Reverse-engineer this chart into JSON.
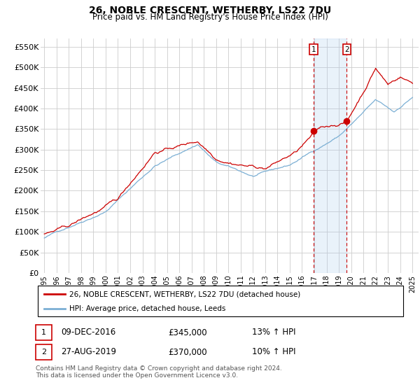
{
  "title": "26, NOBLE CRESCENT, WETHERBY, LS22 7DU",
  "subtitle": "Price paid vs. HM Land Registry's House Price Index (HPI)",
  "ylim": [
    0,
    570000
  ],
  "yticks": [
    0,
    50000,
    100000,
    150000,
    200000,
    250000,
    300000,
    350000,
    400000,
    450000,
    500000,
    550000
  ],
  "ytick_labels": [
    "£0",
    "£50K",
    "£100K",
    "£150K",
    "£200K",
    "£250K",
    "£300K",
    "£350K",
    "£400K",
    "£450K",
    "£500K",
    "£550K"
  ],
  "hpi_color": "#7bafd4",
  "price_color": "#cc0000",
  "grid_color": "#cccccc",
  "shade_color": "#ddeeff",
  "background_color": "#ffffff",
  "sale1_year": 2016.94,
  "sale1_price": 345000,
  "sale2_year": 2019.65,
  "sale2_price": 370000,
  "legend_line1": "26, NOBLE CRESCENT, WETHERBY, LS22 7DU (detached house)",
  "legend_line2": "HPI: Average price, detached house, Leeds",
  "table_row1": [
    "1",
    "09-DEC-2016",
    "£345,000",
    "13% ↑ HPI"
  ],
  "table_row2": [
    "2",
    "27-AUG-2019",
    "£370,000",
    "10% ↑ HPI"
  ],
  "footer": "Contains HM Land Registry data © Crown copyright and database right 2024.\nThis data is licensed under the Open Government Licence v3.0."
}
